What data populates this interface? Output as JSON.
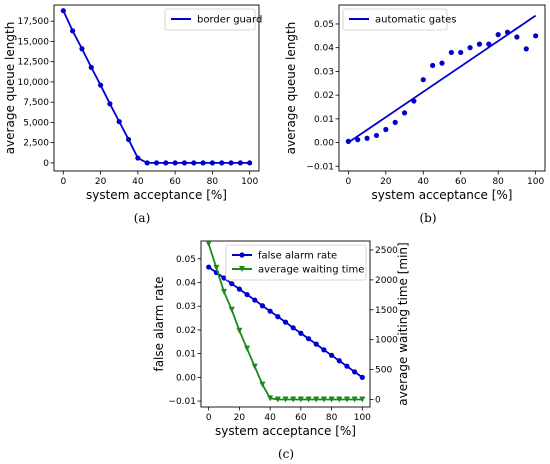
{
  "colors": {
    "blue": "#0000cc",
    "green": "#1a8a1a"
  },
  "captions": [
    "(a)",
    "(b)",
    "(c)"
  ],
  "chart_data": [
    {
      "type": "line",
      "xlabel": "system acceptance [%]",
      "ylabel": "average queue length",
      "xlim": [
        -5,
        105
      ],
      "ylim": [
        -1000,
        19500
      ],
      "xticks": [
        0,
        20,
        40,
        60,
        80,
        100
      ],
      "yticks": [
        0,
        2500,
        5000,
        7500,
        10000,
        12500,
        15000,
        17500
      ],
      "ytick_labels": [
        "0",
        "2,500",
        "5,000",
        "7,500",
        "10,000",
        "12,500",
        "15,000",
        "17,500"
      ],
      "legend_position": "top-right",
      "grid": false,
      "series": [
        {
          "name": "border guard",
          "color": "#0000cc",
          "marker": "circle",
          "x": [
            0,
            5,
            10,
            15,
            20,
            25,
            30,
            35,
            40,
            45,
            50,
            55,
            60,
            65,
            70,
            75,
            80,
            85,
            90,
            95,
            100
          ],
          "y": [
            18800,
            16300,
            14100,
            11800,
            9600,
            7300,
            5100,
            2900,
            600,
            0,
            0,
            0,
            0,
            0,
            0,
            0,
            0,
            0,
            0,
            0,
            0
          ]
        }
      ]
    },
    {
      "type": "scatter",
      "xlabel": "system acceptance [%]",
      "ylabel": "average queue length",
      "xlim": [
        -5,
        105
      ],
      "ylim": [
        -0.012,
        0.058
      ],
      "xticks": [
        0,
        20,
        40,
        60,
        80,
        100
      ],
      "yticks": [
        -0.01,
        0.0,
        0.01,
        0.02,
        0.03,
        0.04,
        0.05
      ],
      "ytick_labels": [
        "−0.01",
        "0.00",
        "0.01",
        "0.02",
        "0.03",
        "0.04",
        "0.05"
      ],
      "legend_position": "top-left",
      "grid": false,
      "series": [
        {
          "name": "automatic gates",
          "color": "#0000cc",
          "marker": "circle",
          "x": [
            0,
            5,
            10,
            15,
            20,
            25,
            30,
            35,
            40,
            45,
            50,
            55,
            60,
            65,
            70,
            75,
            80,
            85,
            90,
            95,
            100
          ],
          "y": [
            0.0005,
            0.0012,
            0.0018,
            0.003,
            0.0055,
            0.0085,
            0.0125,
            0.0175,
            0.0265,
            0.0325,
            0.0335,
            0.038,
            0.038,
            0.04,
            0.0415,
            0.0415,
            0.0455,
            0.0465,
            0.0445,
            0.0395,
            0.045
          ]
        }
      ],
      "trend_line": {
        "x": [
          0,
          100
        ],
        "y": [
          0.0,
          0.0535
        ]
      }
    },
    {
      "type": "line",
      "xlabel": "system acceptance [%]",
      "ylabel": "false alarm rate",
      "ylabel_right": "average waiting time [min]",
      "xlim": [
        -5,
        105
      ],
      "ylim": [
        -0.0125,
        0.0575
      ],
      "ylim_right": [
        -125,
        2650
      ],
      "xticks": [
        0,
        20,
        40,
        60,
        80,
        100
      ],
      "yticks": [
        -0.01,
        0.0,
        0.01,
        0.02,
        0.03,
        0.04,
        0.05
      ],
      "ytick_labels": [
        "−0.01",
        "0.00",
        "0.01",
        "0.02",
        "0.03",
        "0.04",
        "0.05"
      ],
      "yticks_right": [
        0,
        500,
        1000,
        1500,
        2000,
        2500
      ],
      "legend_position": "top-right",
      "grid": false,
      "series": [
        {
          "name": "false alarm rate",
          "color": "#0000cc",
          "marker": "circle",
          "axis": "left",
          "x": [
            0,
            5,
            10,
            15,
            20,
            25,
            30,
            35,
            40,
            45,
            50,
            55,
            60,
            65,
            70,
            75,
            80,
            85,
            90,
            95,
            100
          ],
          "y": [
            0.0465,
            0.0442,
            0.0419,
            0.0395,
            0.0372,
            0.0349,
            0.0326,
            0.0302,
            0.0279,
            0.0256,
            0.0233,
            0.0209,
            0.0186,
            0.0163,
            0.014,
            0.0116,
            0.0093,
            0.007,
            0.0047,
            0.0023,
            0.0
          ]
        },
        {
          "name": "average waiting time",
          "color": "#1a8a1a",
          "marker": "triangle-down",
          "axis": "right",
          "x": [
            0,
            5,
            10,
            15,
            20,
            25,
            30,
            35,
            40,
            45,
            50,
            55,
            60,
            65,
            70,
            75,
            80,
            85,
            90,
            95,
            100
          ],
          "y": [
            2600,
            2200,
            1800,
            1500,
            1150,
            850,
            550,
            250,
            20,
            0,
            0,
            0,
            0,
            0,
            0,
            0,
            0,
            0,
            0,
            0,
            0
          ]
        }
      ]
    }
  ]
}
